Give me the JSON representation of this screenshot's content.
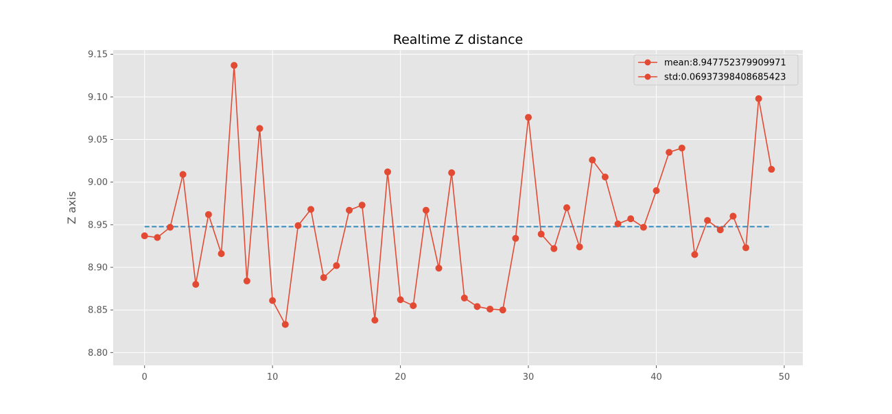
{
  "colors": {
    "plot_background": "#E5E5E5",
    "grid": "#FFFFFF",
    "series": "#E24A33",
    "mean_line": "#348ABD",
    "legend_background": "#E5E5E5",
    "legend_border": "#CCCCCC"
  },
  "chart_data": {
    "type": "line",
    "title": "Realtime Z distance",
    "xlabel": "",
    "ylabel": "Z axis",
    "xlim": [
      -2.45,
      51.45
    ],
    "ylim": [
      8.785,
      9.155
    ],
    "xticks": [
      0,
      10,
      20,
      30,
      40,
      50
    ],
    "yticks": [
      8.8,
      8.85,
      8.9,
      8.95,
      9.0,
      9.05,
      9.1,
      9.15
    ],
    "ytick_labels": [
      "8.80",
      "8.85",
      "8.90",
      "8.95",
      "9.00",
      "9.05",
      "9.10",
      "9.15"
    ],
    "grid": true,
    "legend_position": "top-right",
    "legend": [
      "mean:8.947752379909971",
      "std:0.06937398408685423"
    ],
    "series": [
      {
        "style": "line-with-markers",
        "x": [
          0,
          1,
          2,
          3,
          4,
          5,
          6,
          7,
          8,
          9,
          10,
          11,
          12,
          13,
          14,
          15,
          16,
          17,
          18,
          19,
          20,
          21,
          22,
          23,
          24,
          25,
          26,
          27,
          28,
          29,
          30,
          31,
          32,
          33,
          34,
          35,
          36,
          37,
          38,
          39,
          40,
          41,
          42,
          43,
          44,
          45,
          46,
          47,
          48,
          49
        ],
        "y": [
          8.937,
          8.935,
          8.947,
          9.009,
          8.88,
          8.962,
          8.916,
          9.137,
          8.884,
          9.063,
          8.861,
          8.833,
          8.949,
          8.968,
          8.888,
          8.902,
          8.967,
          8.973,
          8.838,
          9.012,
          8.862,
          8.855,
          8.967,
          8.899,
          9.011,
          8.864,
          8.854,
          8.851,
          8.85,
          8.934,
          9.076,
          8.939,
          8.922,
          8.97,
          8.924,
          9.026,
          9.006,
          8.951,
          8.957,
          8.947,
          8.99,
          9.035,
          9.04,
          8.915,
          8.955,
          8.944,
          8.96,
          8.923,
          9.098,
          9.015
        ]
      },
      {
        "style": "dashed-line",
        "x": [
          0,
          49
        ],
        "y": [
          8.947752379909971,
          8.947752379909971
        ]
      }
    ]
  }
}
